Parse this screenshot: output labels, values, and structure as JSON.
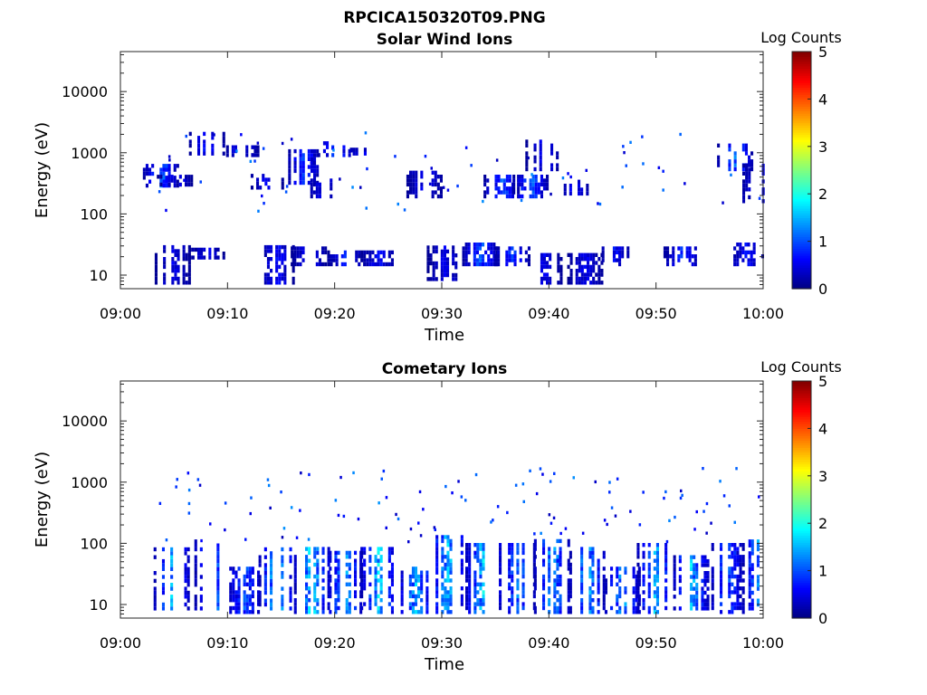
{
  "figure": {
    "title": "RPCICA150320T09.PNG"
  },
  "chart_data": [
    {
      "type": "heatmap",
      "title": "Solar Wind Ions",
      "xlabel": "Time",
      "ylabel": "Energy (eV)",
      "x_ticks": [
        "09:00",
        "09:10",
        "09:20",
        "09:30",
        "09:40",
        "09:50",
        "10:00"
      ],
      "xlim": [
        "09:00",
        "10:00"
      ],
      "y_scale": "log",
      "y_ticks": [
        "10",
        "100",
        "1000",
        "10000"
      ],
      "ylim": [
        6,
        45000
      ],
      "colorbar": {
        "label": "Log Counts",
        "min": 0,
        "max": 5,
        "ticks": [
          "0",
          "1",
          "2",
          "3",
          "4",
          "5"
        ]
      },
      "bursts": [
        {
          "t": 3.7,
          "e_low": 270,
          "e_high": 650,
          "level": 1.2
        },
        {
          "t": 5.0,
          "e_low": 280,
          "e_high": 380,
          "level": 0.6
        },
        {
          "t": 8.0,
          "e_low": 900,
          "e_high": 2000,
          "level": 0.8
        },
        {
          "t": 11.2,
          "e_low": 850,
          "e_high": 1200,
          "level": 0.7
        },
        {
          "t": 13.5,
          "e_low": 250,
          "e_high": 420,
          "level": 0.6
        },
        {
          "t": 17.0,
          "e_low": 300,
          "e_high": 1100,
          "level": 0.9
        },
        {
          "t": 18.8,
          "e_low": 180,
          "e_high": 350,
          "level": 0.6
        },
        {
          "t": 20.0,
          "e_low": 850,
          "e_high": 1500,
          "level": 1.0
        },
        {
          "t": 22.5,
          "e_low": 900,
          "e_high": 1100,
          "level": 0.6
        },
        {
          "t": 28.3,
          "e_low": 180,
          "e_high": 450,
          "level": 0.7
        },
        {
          "t": 35.5,
          "e_low": 180,
          "e_high": 420,
          "level": 1.1
        },
        {
          "t": 38.2,
          "e_low": 180,
          "e_high": 430,
          "level": 1.2
        },
        {
          "t": 39.4,
          "e_low": 500,
          "e_high": 1500,
          "level": 0.6
        },
        {
          "t": 42.2,
          "e_low": 200,
          "e_high": 350,
          "level": 0.7
        },
        {
          "t": 57.3,
          "e_low": 500,
          "e_high": 1400,
          "level": 1.2
        },
        {
          "t": 59.4,
          "e_low": 150,
          "e_high": 600,
          "level": 0.7
        }
      ],
      "low_energy_bursts": [
        {
          "t": 4.8,
          "e_low": 7,
          "e_high": 28,
          "level": 0.6
        },
        {
          "t": 8.0,
          "e_low": 18,
          "e_high": 27,
          "level": 0.6
        },
        {
          "t": 14.5,
          "e_low": 7,
          "e_high": 28,
          "level": 0.7
        },
        {
          "t": 17.5,
          "e_low": 14,
          "e_high": 28,
          "level": 0.7
        },
        {
          "t": 20.9,
          "e_low": 14,
          "e_high": 22,
          "level": 0.8
        },
        {
          "t": 24.0,
          "e_low": 14,
          "e_high": 22,
          "level": 0.7
        },
        {
          "t": 30.2,
          "e_low": 8,
          "e_high": 27,
          "level": 0.6
        },
        {
          "t": 33.5,
          "e_low": 14,
          "e_high": 30,
          "level": 1.1
        },
        {
          "t": 36.5,
          "e_low": 14,
          "e_high": 28,
          "level": 1.0
        },
        {
          "t": 39.5,
          "e_low": 7,
          "e_high": 22,
          "level": 0.6
        },
        {
          "t": 43.3,
          "e_low": 7,
          "e_high": 22,
          "level": 0.6
        },
        {
          "t": 46.0,
          "e_low": 14,
          "e_high": 28,
          "level": 0.7
        },
        {
          "t": 52.3,
          "e_low": 14,
          "e_high": 28,
          "level": 0.9
        },
        {
          "t": 58.3,
          "e_low": 14,
          "e_high": 30,
          "level": 0.7
        }
      ]
    },
    {
      "type": "heatmap",
      "title": "Cometary Ions",
      "xlabel": "Time",
      "ylabel": "Energy (eV)",
      "x_ticks": [
        "09:00",
        "09:10",
        "09:20",
        "09:30",
        "09:40",
        "09:50",
        "10:00"
      ],
      "xlim": [
        "09:00",
        "10:00"
      ],
      "y_scale": "log",
      "y_ticks": [
        "10",
        "100",
        "1000",
        "10000"
      ],
      "ylim": [
        6,
        45000
      ],
      "colorbar": {
        "label": "Log Counts",
        "min": 0,
        "max": 5,
        "ticks": [
          "0",
          "1",
          "2",
          "3",
          "4",
          "5"
        ]
      },
      "bursts": [
        {
          "t": 4.7,
          "e_low": 8,
          "e_high": 80,
          "level": 1.6
        },
        {
          "t": 8.5,
          "e_low": 8,
          "e_high": 110,
          "level": 1.5
        },
        {
          "t": 11.5,
          "e_low": 7,
          "e_high": 40,
          "level": 1.1
        },
        {
          "t": 14.5,
          "e_low": 8,
          "e_high": 80,
          "level": 1.8
        },
        {
          "t": 17.8,
          "e_low": 7,
          "e_high": 80,
          "level": 1.9
        },
        {
          "t": 20.8,
          "e_low": 7,
          "e_high": 70,
          "level": 1.6
        },
        {
          "t": 24.0,
          "e_low": 7,
          "e_high": 80,
          "level": 1.8
        },
        {
          "t": 27.5,
          "e_low": 7,
          "e_high": 40,
          "level": 1.6
        },
        {
          "t": 30.5,
          "e_low": 7,
          "e_high": 120,
          "level": 1.7
        },
        {
          "t": 33.8,
          "e_low": 7,
          "e_high": 100,
          "level": 1.8
        },
        {
          "t": 37.0,
          "e_low": 7,
          "e_high": 100,
          "level": 1.3
        },
        {
          "t": 40.2,
          "e_low": 7,
          "e_high": 110,
          "level": 1.6
        },
        {
          "t": 43.5,
          "e_low": 7,
          "e_high": 80,
          "level": 1.6
        },
        {
          "t": 46.8,
          "e_low": 7,
          "e_high": 40,
          "level": 1.5
        },
        {
          "t": 49.8,
          "e_low": 7,
          "e_high": 90,
          "level": 1.6
        },
        {
          "t": 53.2,
          "e_low": 8,
          "e_high": 60,
          "level": 1.7
        },
        {
          "t": 56.5,
          "e_low": 7,
          "e_high": 100,
          "level": 1.2
        },
        {
          "t": 59.7,
          "e_low": 8,
          "e_high": 100,
          "level": 1.7
        }
      ]
    }
  ]
}
